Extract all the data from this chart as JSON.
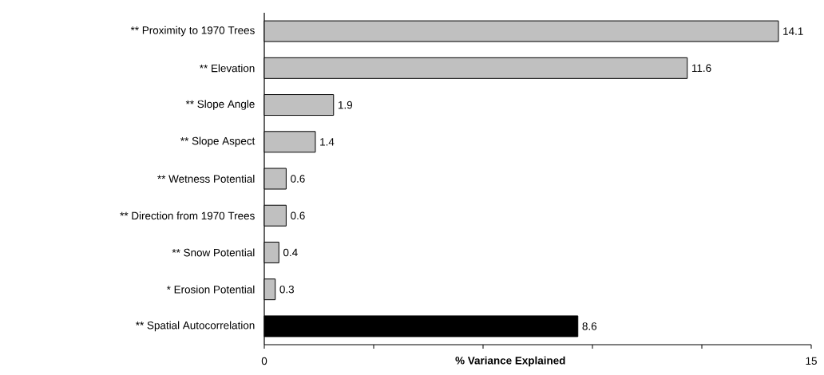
{
  "chart_data": {
    "type": "bar",
    "orientation": "horizontal",
    "xlabel": "% Variance Explained",
    "categories": [
      "** Proximity to 1970 Trees",
      "** Elevation",
      "** Slope Angle",
      "** Slope Aspect",
      "** Wetness Potential",
      "** Direction from 1970 Trees",
      "** Snow Potential",
      "*  Erosion Potential",
      "** Spatial Autocorrelation"
    ],
    "values": [
      14.1,
      11.6,
      1.9,
      1.4,
      0.6,
      0.6,
      0.4,
      0.3,
      8.6
    ],
    "colors": [
      "#c0c0c0",
      "#c0c0c0",
      "#c0c0c0",
      "#c0c0c0",
      "#c0c0c0",
      "#c0c0c0",
      "#c0c0c0",
      "#c0c0c0",
      "#000000"
    ],
    "xlim": [
      0,
      15
    ],
    "xticks": [
      0,
      {
        "value": 3,
        "label": null
      },
      {
        "value": 6,
        "label": null
      },
      {
        "value": 9,
        "label": null
      },
      {
        "value": 12,
        "label": null
      },
      15
    ],
    "data_labels": true,
    "grid": false
  }
}
